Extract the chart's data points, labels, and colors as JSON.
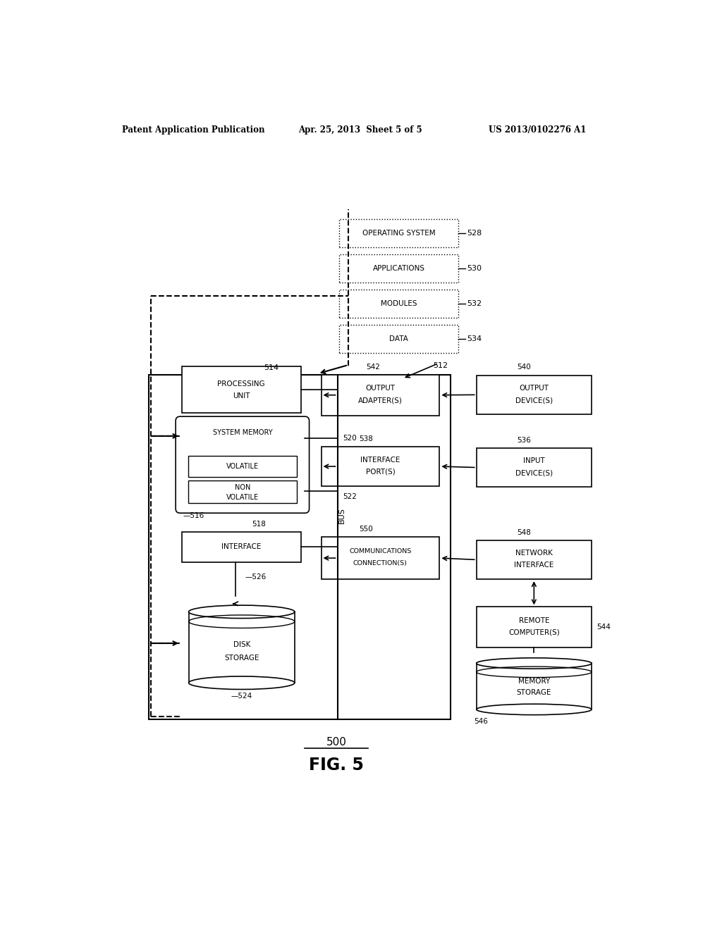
{
  "header_left": "Patent Application Publication",
  "header_middle": "Apr. 25, 2013  Sheet 5 of 5",
  "header_right": "US 2013/0102276 A1",
  "fig_label": "500",
  "fig_name": "FIG. 5",
  "bg_color": "#ffffff",
  "line_color": "#000000",
  "text_color": "#000000"
}
